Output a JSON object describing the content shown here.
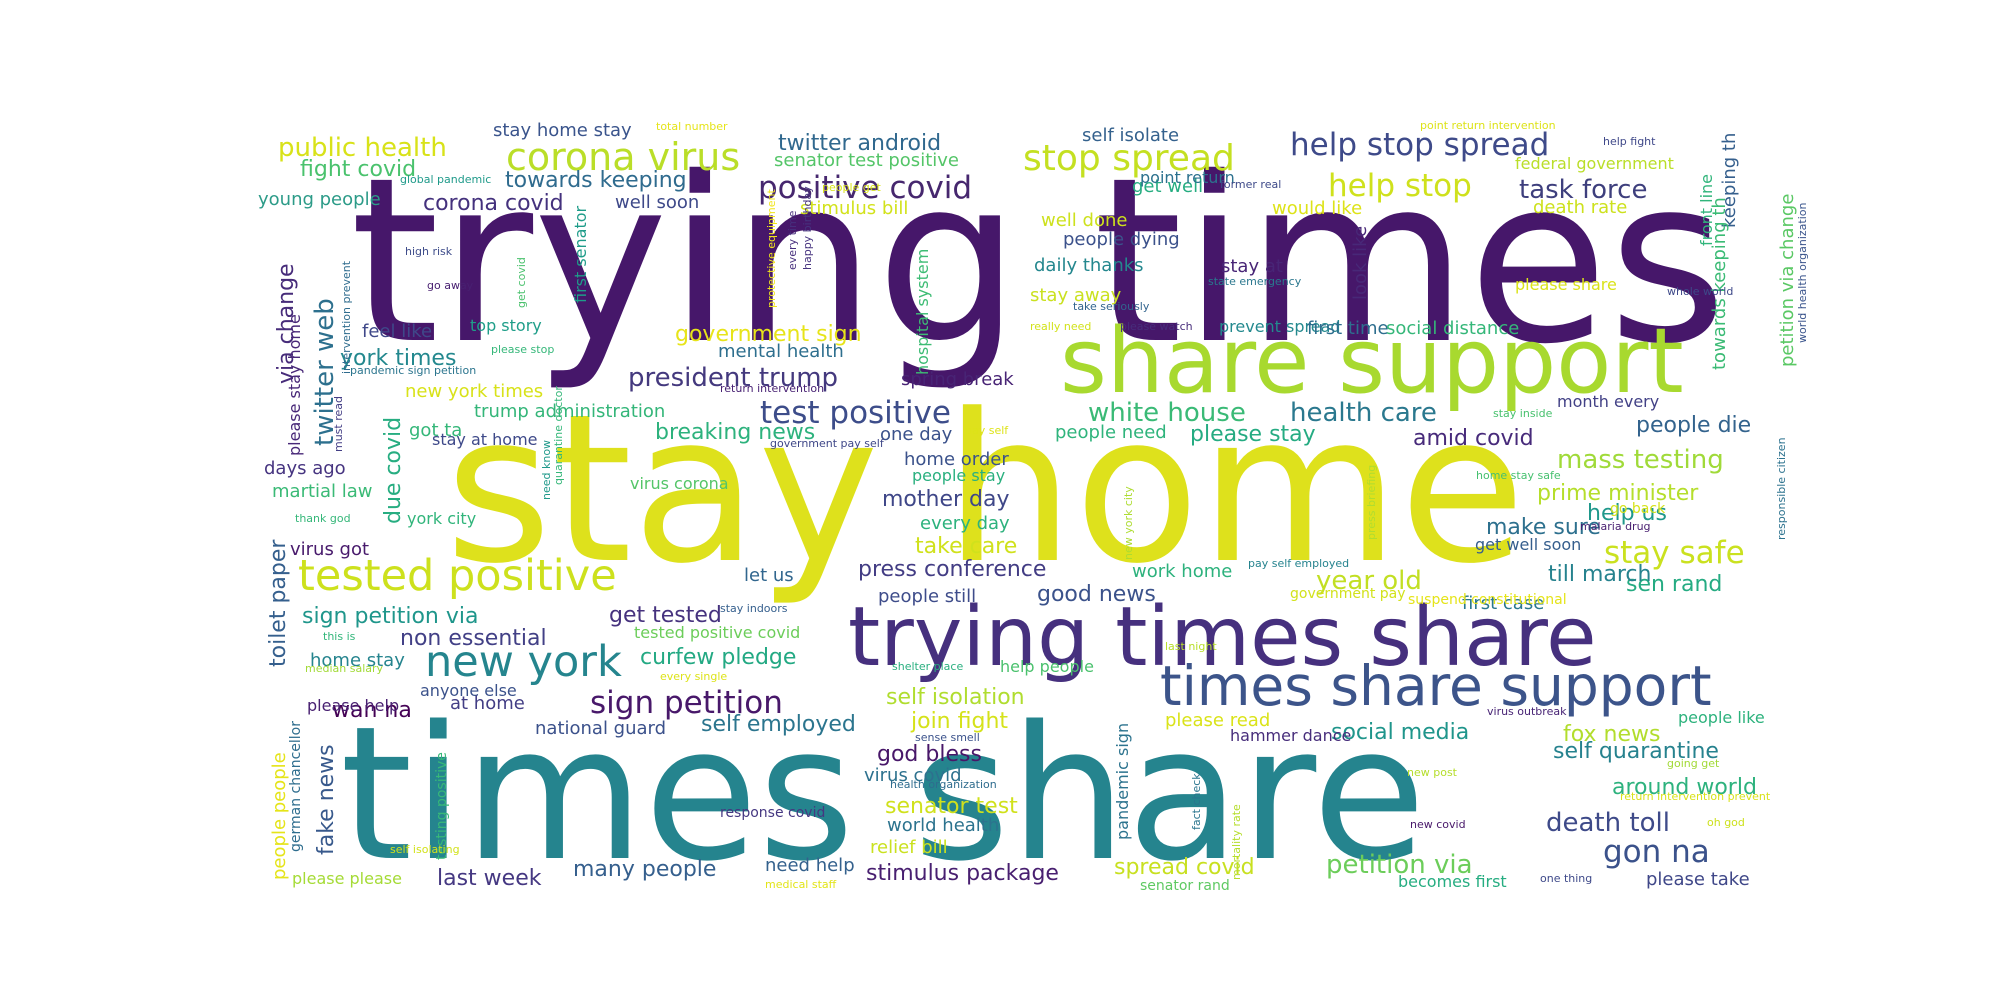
{
  "wordcloud": {
    "words": [
      {
        "text": "trying times",
        "color": "#46176a"
      },
      {
        "text": "stay home",
        "color": "#dee11c"
      },
      {
        "text": "times share",
        "color": "#25848e"
      },
      {
        "text": "share support",
        "color": "#a8d92f"
      },
      {
        "text": "trying times share",
        "color": "#46307e"
      },
      {
        "text": "times share support",
        "color": "#3c548a"
      },
      {
        "text": "tested positive",
        "color": "#cde11d"
      },
      {
        "text": "new york",
        "color": "#25858e"
      },
      {
        "text": "corona virus",
        "color": "#bade28"
      },
      {
        "text": "stop spread",
        "color": "#c4e021"
      },
      {
        "text": "help stop spread",
        "color": "#3e4a89"
      },
      {
        "text": "help stop",
        "color": "#cfe11c"
      },
      {
        "text": "positive covid",
        "color": "#46276e"
      },
      {
        "text": "task force",
        "color": "#3e3f7d"
      },
      {
        "text": "sign petition",
        "color": "#48186a"
      },
      {
        "text": "test positive",
        "color": "#3d4d8a"
      },
      {
        "text": "president trump",
        "color": "#44397e"
      },
      {
        "text": "public health",
        "color": "#d8e219"
      },
      {
        "text": "fight covid",
        "color": "#4ac26d"
      },
      {
        "text": "twitter android",
        "color": "#30688e"
      },
      {
        "text": "towards keeping",
        "color": "#2f6b8e"
      },
      {
        "text": "corona covid",
        "color": "#44317d"
      },
      {
        "text": "young people",
        "color": "#2c9b88"
      },
      {
        "text": "well soon",
        "color": "#3e4989"
      },
      {
        "text": "senator test positive",
        "color": "#54c568"
      },
      {
        "text": "stimulus bill",
        "color": "#d2e21b"
      },
      {
        "text": "self isolate",
        "color": "#34618d"
      },
      {
        "text": "get well",
        "color": "#26ad81"
      },
      {
        "text": "point return",
        "color": "#2c718e"
      },
      {
        "text": "federal government",
        "color": "#bade28"
      },
      {
        "text": "death rate",
        "color": "#cde11d"
      },
      {
        "text": "stay home stay",
        "color": "#3a548c"
      },
      {
        "text": "mass testing",
        "color": "#a0da39"
      },
      {
        "text": "stay safe",
        "color": "#cae11f"
      },
      {
        "text": "health care",
        "color": "#2a788e"
      },
      {
        "text": "white house",
        "color": "#3aba76"
      },
      {
        "text": "amid covid",
        "color": "#472a7a"
      },
      {
        "text": "people die",
        "color": "#33638d"
      },
      {
        "text": "prime minister",
        "color": "#b5de2b"
      },
      {
        "text": "help us",
        "color": "#1f988b"
      },
      {
        "text": "make sure",
        "color": "#2d708e"
      },
      {
        "text": "year old",
        "color": "#c2df23"
      },
      {
        "text": "sen rand",
        "color": "#25ab82"
      },
      {
        "text": "till march",
        "color": "#26828e"
      },
      {
        "text": "first case",
        "color": "#2a788e"
      },
      {
        "text": "government sign",
        "color": "#e7e419"
      },
      {
        "text": "mental health",
        "color": "#2e6f8e"
      },
      {
        "text": "spring break",
        "color": "#482475"
      },
      {
        "text": "people need",
        "color": "#2fb47c"
      },
      {
        "text": "please stay",
        "color": "#25ab82"
      },
      {
        "text": "breaking news",
        "color": "#2db27d"
      },
      {
        "text": "one day",
        "color": "#3b528b"
      },
      {
        "text": "home order",
        "color": "#3b528b"
      },
      {
        "text": "people stay",
        "color": "#2ab07f"
      },
      {
        "text": "mother day",
        "color": "#3f4788"
      },
      {
        "text": "every day",
        "color": "#2db27d"
      },
      {
        "text": "take care",
        "color": "#d0e11c"
      },
      {
        "text": "press conference",
        "color": "#433d84"
      },
      {
        "text": "people still",
        "color": "#3e4c8a"
      },
      {
        "text": "good news",
        "color": "#3b528b"
      },
      {
        "text": "let us",
        "color": "#31668e"
      },
      {
        "text": "get tested",
        "color": "#46327e"
      },
      {
        "text": "tested positive covid",
        "color": "#6ccd5a"
      },
      {
        "text": "curfew pledge",
        "color": "#23a983"
      },
      {
        "text": "self isolation",
        "color": "#b0dd2f"
      },
      {
        "text": "join fight",
        "color": "#d5e21a"
      },
      {
        "text": "self employed",
        "color": "#2b758e"
      },
      {
        "text": "god bless",
        "color": "#481769"
      },
      {
        "text": "virus covid",
        "color": "#2d718e"
      },
      {
        "text": "senator test",
        "color": "#d0e11c"
      },
      {
        "text": "world health",
        "color": "#2c738e"
      },
      {
        "text": "relief bill",
        "color": "#cae11f"
      },
      {
        "text": "stimulus package",
        "color": "#481f70"
      },
      {
        "text": "many people",
        "color": "#355f8d"
      },
      {
        "text": "need help",
        "color": "#34618d"
      },
      {
        "text": "last week",
        "color": "#453882"
      },
      {
        "text": "national guard",
        "color": "#3b518b"
      },
      {
        "text": "anyone else",
        "color": "#3b528b"
      },
      {
        "text": "at home",
        "color": "#433e85"
      },
      {
        "text": "wan na",
        "color": "#440154"
      },
      {
        "text": "home stay",
        "color": "#25848e"
      },
      {
        "text": "non essential",
        "color": "#424086"
      },
      {
        "text": "sign petition via",
        "color": "#1f968b"
      },
      {
        "text": "fake news",
        "color": "#38598c"
      },
      {
        "text": "please help",
        "color": "#482071"
      },
      {
        "text": "twitter web",
        "color": "#2d708e"
      },
      {
        "text": "via change",
        "color": "#472c7a"
      },
      {
        "text": "york times",
        "color": "#23888e"
      },
      {
        "text": "new york times",
        "color": "#d8e219"
      },
      {
        "text": "trump administration",
        "color": "#34b679"
      },
      {
        "text": "got ta",
        "color": "#35b779"
      },
      {
        "text": "stay at home",
        "color": "#3e4989"
      },
      {
        "text": "due covid",
        "color": "#27ad81"
      },
      {
        "text": "days ago",
        "color": "#463480"
      },
      {
        "text": "martial law",
        "color": "#3aba76"
      },
      {
        "text": "york city",
        "color": "#31b57b"
      },
      {
        "text": "virus got",
        "color": "#481a6c"
      },
      {
        "text": "toilet paper",
        "color": "#355f8d"
      },
      {
        "text": "feel like",
        "color": "#3f4889"
      },
      {
        "text": "top story",
        "color": "#1f9e89"
      },
      {
        "text": "people dying",
        "color": "#3b518b"
      },
      {
        "text": "daily thanks",
        "color": "#24878e"
      },
      {
        "text": "stay away",
        "color": "#cae11f"
      },
      {
        "text": "well done",
        "color": "#cde11d"
      },
      {
        "text": "stay at",
        "color": "#482576"
      },
      {
        "text": "prevent spread",
        "color": "#23898e"
      },
      {
        "text": "first time",
        "color": "#2e6e8e"
      },
      {
        "text": "social distance",
        "color": "#35b779"
      },
      {
        "text": "would like",
        "color": "#dde318"
      },
      {
        "text": "look like",
        "color": "#482878"
      },
      {
        "text": "please share",
        "color": "#dae319"
      },
      {
        "text": "month every",
        "color": "#424186"
      },
      {
        "text": "self quarantine",
        "color": "#26828e"
      },
      {
        "text": "around world",
        "color": "#2db27d"
      },
      {
        "text": "death toll",
        "color": "#3e4a89"
      },
      {
        "text": "gon na",
        "color": "#3b528b"
      },
      {
        "text": "fox news",
        "color": "#b2dd2d"
      },
      {
        "text": "social media",
        "color": "#1f958b"
      },
      {
        "text": "petition via",
        "color": "#6ccd5a"
      },
      {
        "text": "spread covid",
        "color": "#c8e020"
      },
      {
        "text": "becomes first",
        "color": "#26ad81"
      },
      {
        "text": "please take",
        "color": "#3f4788"
      },
      {
        "text": "people like",
        "color": "#2db27d"
      },
      {
        "text": "senator rand",
        "color": "#5ec962"
      },
      {
        "text": "please please",
        "color": "#a5db36"
      },
      {
        "text": "people people",
        "color": "#e5e419"
      },
      {
        "text": "german chancellor",
        "color": "#2e6d8e"
      },
      {
        "text": "testing positive",
        "color": "#37b878"
      },
      {
        "text": "front line",
        "color": "#31b57b"
      },
      {
        "text": "keeping th",
        "color": "#355f8d"
      },
      {
        "text": "towards keeping th",
        "color": "#3bbb75"
      },
      {
        "text": "petition via change",
        "color": "#5ac864"
      },
      {
        "text": "hospital system",
        "color": "#3dbc74"
      },
      {
        "text": "first senator",
        "color": "#1e9c89"
      },
      {
        "text": "pandemic sign",
        "color": "#2c738e"
      },
      {
        "text": "please stay home",
        "color": "#482878"
      },
      {
        "text": "total number",
        "color": "#e5e419"
      },
      {
        "text": "point return intervention",
        "color": "#dde318"
      },
      {
        "text": "help fight",
        "color": "#3f4889"
      },
      {
        "text": "global pandemic",
        "color": "#1f9a8a"
      },
      {
        "text": "former real",
        "color": "#3e4a89"
      },
      {
        "text": "protective equipment",
        "color": "#f1e51d"
      },
      {
        "text": "every time",
        "color": "#472f7d"
      },
      {
        "text": "happy birthday",
        "color": "#46337f"
      },
      {
        "text": "people get",
        "color": "#d8e219"
      },
      {
        "text": "high risk",
        "color": "#3e4c8a"
      },
      {
        "text": "go away",
        "color": "#482071"
      },
      {
        "text": "get covid",
        "color": "#4ac16d"
      },
      {
        "text": "intervention prevent",
        "color": "#2f6c8e"
      },
      {
        "text": "state emergency",
        "color": "#2a778e"
      },
      {
        "text": "take seriously",
        "color": "#32648e"
      },
      {
        "text": "really need",
        "color": "#d2e21b"
      },
      {
        "text": "please watch",
        "color": "#472d7b"
      },
      {
        "text": "whole world",
        "color": "#3e4989"
      },
      {
        "text": "world health organization",
        "color": "#3a548c"
      },
      {
        "text": "please stop",
        "color": "#35b779"
      },
      {
        "text": "pandemic sign petition",
        "color": "#2b758e"
      },
      {
        "text": "return intervention",
        "color": "#482173"
      },
      {
        "text": "pay self",
        "color": "#dde318"
      },
      {
        "text": "government pay self",
        "color": "#3f4788"
      },
      {
        "text": "stay inside",
        "color": "#48c16e"
      },
      {
        "text": "must read",
        "color": "#433e85"
      },
      {
        "text": "quarantine doctor",
        "color": "#35b779"
      },
      {
        "text": "need know",
        "color": "#1f998a"
      },
      {
        "text": "virus corona",
        "color": "#54c568"
      },
      {
        "text": "new york city",
        "color": "#addc30"
      },
      {
        "text": "press briefing",
        "color": "#b0dd2f"
      },
      {
        "text": "home stay safe",
        "color": "#46c06f"
      },
      {
        "text": "responsible citizen",
        "color": "#2c728e"
      },
      {
        "text": "malaria drug",
        "color": "#481f70"
      },
      {
        "text": "go back",
        "color": "#d5e21a"
      },
      {
        "text": "thank god",
        "color": "#35b779"
      },
      {
        "text": "get well soon",
        "color": "#355e8d"
      },
      {
        "text": "work home",
        "color": "#2db27d"
      },
      {
        "text": "pay self employed",
        "color": "#25838e"
      },
      {
        "text": "government pay",
        "color": "#d2e21b"
      },
      {
        "text": "suspend constitutional",
        "color": "#e5e419"
      },
      {
        "text": "stay indoors",
        "color": "#355f8d"
      },
      {
        "text": "last night",
        "color": "#b8de29"
      },
      {
        "text": "this is",
        "color": "#32b67a"
      },
      {
        "text": "median salary",
        "color": "#a2da37"
      },
      {
        "text": "every single",
        "color": "#dde318"
      },
      {
        "text": "shelter place",
        "color": "#29af7f"
      },
      {
        "text": "help people",
        "color": "#4ac16d"
      },
      {
        "text": "please read",
        "color": "#dae319"
      },
      {
        "text": "hammer dance",
        "color": "#472d7b"
      },
      {
        "text": "virus outbreak",
        "color": "#482475"
      },
      {
        "text": "sense smell",
        "color": "#3b528b"
      },
      {
        "text": "health organization",
        "color": "#2f6c8e"
      },
      {
        "text": "response covid",
        "color": "#453781"
      },
      {
        "text": "fact check",
        "color": "#2b758e"
      },
      {
        "text": "mortality rate",
        "color": "#b5de2b"
      },
      {
        "text": "new post",
        "color": "#b5de2b"
      },
      {
        "text": "going get",
        "color": "#a2da37"
      },
      {
        "text": "return intervention prevent",
        "color": "#d8e219"
      },
      {
        "text": "new covid",
        "color": "#48186a"
      },
      {
        "text": "oh god",
        "color": "#cde11d"
      },
      {
        "text": "self isolating",
        "color": "#d2e21b"
      },
      {
        "text": "medical staff",
        "color": "#e2e418"
      },
      {
        "text": "one thing",
        "color": "#3e4989"
      }
    ]
  }
}
